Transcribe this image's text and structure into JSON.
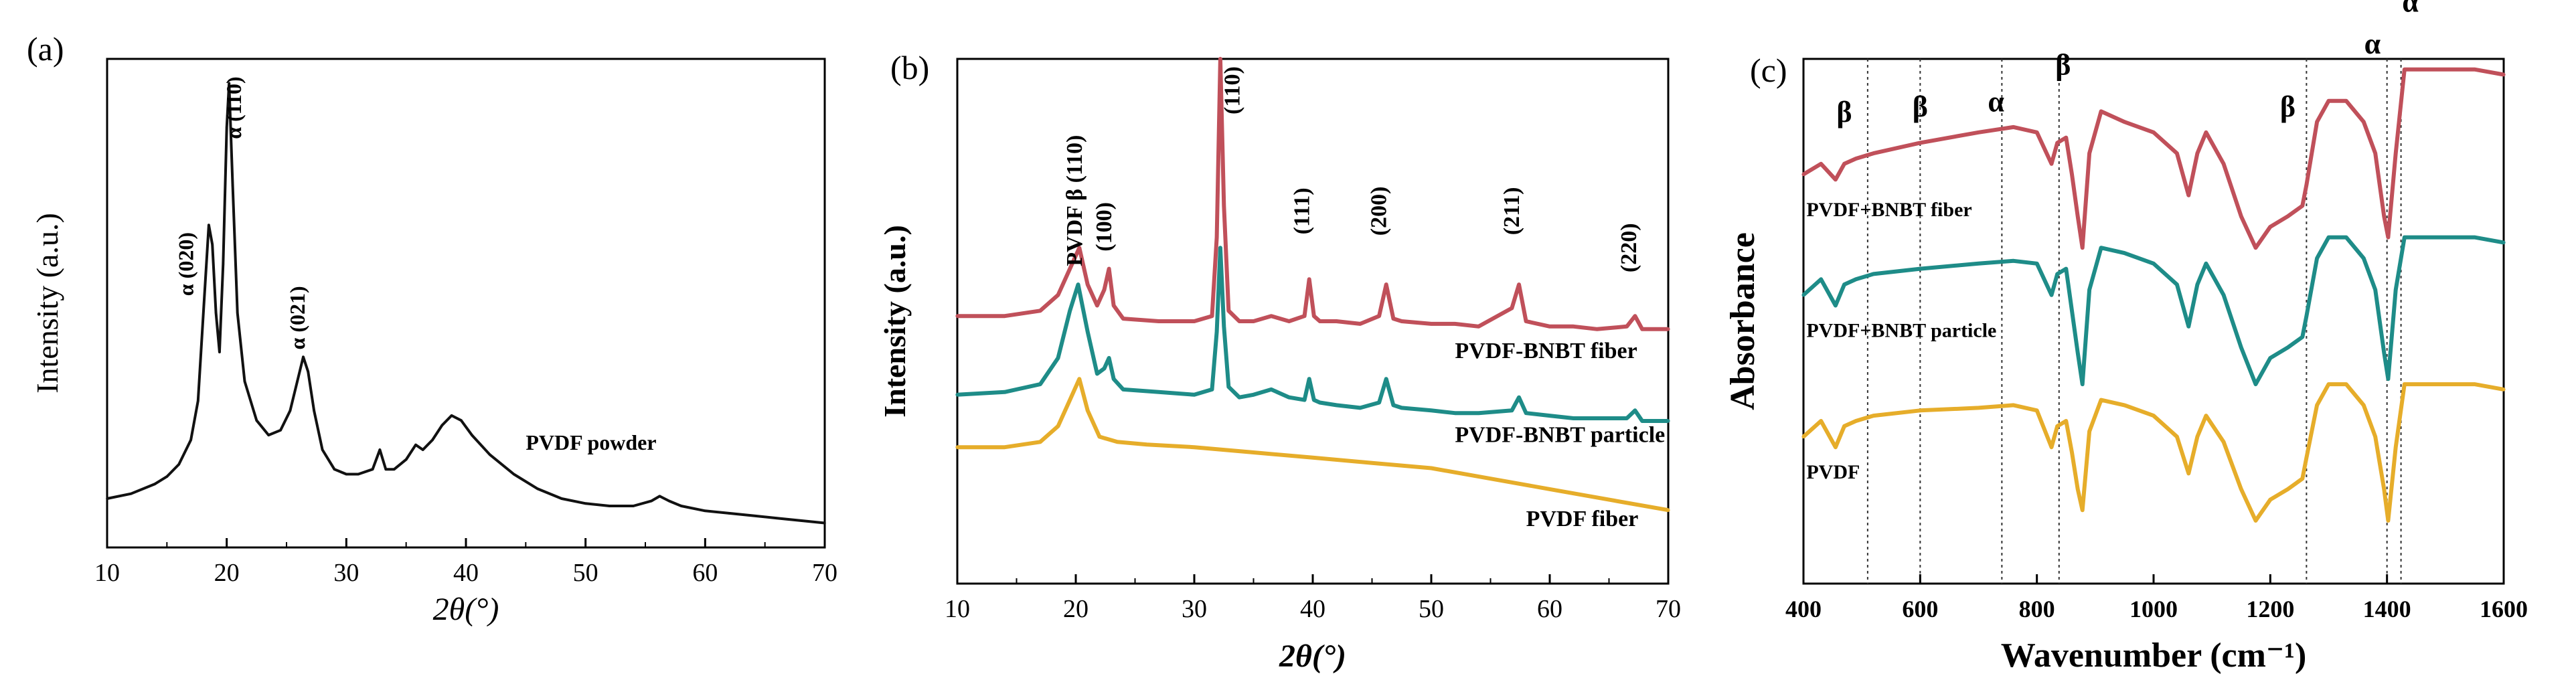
{
  "chart_data": [
    {
      "type": "line",
      "panel_label": "(a)",
      "xlabel": "2θ(°)",
      "ylabel": "Intensity (a.u.)",
      "xlim": [
        10,
        70
      ],
      "ylim": [
        0,
        100
      ],
      "xticks": [
        10,
        20,
        30,
        40,
        50,
        60,
        70
      ],
      "series": [
        {
          "name": "PVDF powder",
          "color": "#111111",
          "x": [
            10,
            12,
            14,
            15,
            16,
            17,
            17.6,
            18.1,
            18.5,
            18.8,
            19.1,
            19.4,
            19.7,
            20.0,
            20.2,
            20.5,
            20.9,
            21.5,
            22.5,
            23.5,
            24.5,
            25.3,
            25.9,
            26.4,
            26.8,
            27.3,
            28,
            29,
            30,
            31,
            32.2,
            32.8,
            33.3,
            34,
            35,
            35.8,
            36.4,
            37.2,
            38,
            38.8,
            39.6,
            40.5,
            42,
            44,
            46,
            48,
            50,
            52,
            54,
            55.5,
            56.2,
            57,
            58,
            60,
            62,
            64,
            66,
            68,
            70
          ],
          "values": [
            10,
            11,
            13,
            14.5,
            17,
            22,
            30,
            50,
            66,
            62,
            48,
            40,
            58,
            86,
            95,
            74,
            48,
            34,
            26,
            23,
            24,
            28,
            34,
            39,
            36,
            28,
            20,
            16,
            15,
            15,
            16,
            20,
            16,
            16,
            18,
            21,
            20,
            22,
            25,
            27,
            26,
            23,
            19,
            15,
            12,
            10,
            9,
            8.5,
            8.5,
            9.5,
            10.5,
            9.5,
            8.5,
            7.5,
            7,
            6.5,
            6,
            5.5,
            5
          ]
        }
      ],
      "annotations": [
        {
          "text": "α (020)",
          "x": 17.2,
          "y": 58
        },
        {
          "text": "α (110)",
          "x": 21.2,
          "y": 90
        },
        {
          "text": "α (021)",
          "x": 26.5,
          "y": 47
        },
        {
          "text": "PVDF powder",
          "x": 45,
          "y": 20
        }
      ]
    },
    {
      "type": "line",
      "panel_label": "(b)",
      "xlabel": "2θ(°)",
      "ylabel": "Intensity (a.u.)",
      "xlim": [
        10,
        70
      ],
      "ylim": [
        0,
        100
      ],
      "xticks": [
        10,
        20,
        30,
        40,
        50,
        60,
        70
      ],
      "series": [
        {
          "name": "PVDF-BNBT fiber",
          "color": "#c0505a",
          "x": [
            10,
            14,
            17,
            18.5,
            19.5,
            20.3,
            21,
            21.8,
            22.4,
            22.8,
            23.2,
            24,
            27,
            30,
            31.5,
            31.9,
            32.2,
            32.5,
            32.9,
            33.8,
            35,
            36.5,
            38,
            39.3,
            39.7,
            40.1,
            40.6,
            42,
            44,
            45.6,
            46.2,
            46.8,
            47.5,
            50,
            52,
            54,
            56.8,
            57.4,
            58,
            60,
            62,
            64,
            66.5,
            67.2,
            67.8,
            69,
            70
          ],
          "values": [
            51,
            51,
            52,
            55,
            60,
            64,
            57,
            53,
            56,
            60,
            53,
            50.5,
            50,
            50,
            51,
            66,
            100,
            72,
            52,
            50,
            50,
            51,
            50,
            51,
            58,
            51,
            50,
            50,
            49.5,
            51,
            57,
            50.5,
            50,
            49.5,
            49.5,
            49,
            52.5,
            57,
            50,
            49,
            49,
            48.5,
            49,
            51,
            48.5,
            48.5,
            48.5
          ]
        },
        {
          "name": "PVDF-BNBT particle",
          "color": "#1e8c88",
          "x": [
            10,
            14,
            17,
            18.5,
            19.5,
            20.2,
            21,
            21.8,
            22.4,
            22.8,
            23.2,
            24,
            27,
            30,
            31.5,
            31.9,
            32.2,
            32.5,
            32.9,
            33.8,
            35,
            36.5,
            38,
            39.3,
            39.7,
            40.1,
            40.6,
            42,
            44,
            45.6,
            46.2,
            46.8,
            47.5,
            50,
            52,
            54,
            56.8,
            57.4,
            58,
            60,
            62,
            64,
            66.5,
            67.2,
            67.8,
            69,
            70
          ],
          "values": [
            36,
            36.5,
            38,
            43,
            52,
            57,
            48,
            40,
            41,
            43,
            39,
            37,
            36.5,
            36,
            37,
            48,
            64,
            49,
            37.5,
            35.5,
            36,
            37,
            35.5,
            35,
            39,
            35,
            34.5,
            34,
            33.5,
            34.5,
            39,
            34,
            33.5,
            33,
            32.5,
            32.5,
            33,
            35.5,
            32.5,
            32,
            31.5,
            31.5,
            31.5,
            33,
            31,
            31,
            31
          ]
        },
        {
          "name": "PVDF fiber",
          "color": "#e6ad2a",
          "x": [
            10,
            14,
            17,
            18.5,
            19.5,
            20.3,
            21,
            22,
            23.5,
            26,
            30,
            35,
            40,
            45,
            50,
            55,
            60,
            65,
            70
          ],
          "values": [
            26,
            26,
            27,
            30,
            35,
            39,
            33,
            28,
            27,
            26.5,
            26,
            25,
            24,
            23,
            22,
            20,
            18,
            16,
            14
          ]
        }
      ],
      "annotations": [
        {
          "text": "PVDF β (110)",
          "x": 20.5,
          "y": 73
        },
        {
          "text": "(100)",
          "x": 23,
          "y": 68
        },
        {
          "text": "(110)",
          "x": 33.8,
          "y": 94
        },
        {
          "text": "(111)",
          "x": 39.7,
          "y": 71
        },
        {
          "text": "(200)",
          "x": 46.2,
          "y": 71
        },
        {
          "text": "(211)",
          "x": 57.4,
          "y": 71
        },
        {
          "text": "(220)",
          "x": 67.3,
          "y": 64
        },
        {
          "text": "PVDF-BNBT fiber",
          "x": 52,
          "y": 43
        },
        {
          "text": "PVDF-BNBT particle",
          "x": 52,
          "y": 27
        },
        {
          "text": "PVDF fiber",
          "x": 58,
          "y": 11
        }
      ]
    },
    {
      "type": "line",
      "panel_label": "(c)",
      "xlabel": "Wavenumber (cm⁻¹)",
      "ylabel": "Absorbance",
      "xlim": [
        400,
        1600
      ],
      "ylim": [
        0,
        100
      ],
      "xticks": [
        400,
        600,
        800,
        1000,
        1200,
        1400,
        1600
      ],
      "reference_lines_x": [
        510,
        600,
        740,
        838,
        1262,
        1400,
        1424
      ],
      "series": [
        {
          "name": "PVDF+BNBT fiber",
          "color": "#c0505a",
          "x": [
            400,
            430,
            455,
            470,
            490,
            520,
            600,
            700,
            760,
            800,
            825,
            835,
            850,
            860,
            870,
            878,
            890,
            910,
            950,
            1000,
            1040,
            1060,
            1075,
            1090,
            1120,
            1150,
            1175,
            1200,
            1230,
            1255,
            1262,
            1280,
            1300,
            1330,
            1360,
            1380,
            1395,
            1402,
            1415,
            1430,
            1450,
            1500,
            1550,
            1600
          ],
          "values": [
            78,
            80,
            77,
            80,
            81,
            82,
            84,
            86,
            87,
            86,
            80,
            84,
            85,
            78,
            70,
            64,
            82,
            90,
            88,
            86,
            82,
            74,
            82,
            86,
            80,
            70,
            64,
            68,
            70,
            72,
            76,
            88,
            92,
            92,
            88,
            82,
            70,
            66,
            82,
            98,
            98,
            98,
            98,
            97
          ]
        },
        {
          "name": "PVDF+BNBT particle",
          "color": "#1e8c88",
          "x": [
            400,
            430,
            455,
            470,
            490,
            520,
            600,
            700,
            760,
            800,
            825,
            835,
            850,
            860,
            870,
            878,
            890,
            910,
            950,
            1000,
            1040,
            1060,
            1075,
            1090,
            1120,
            1150,
            1175,
            1200,
            1230,
            1255,
            1262,
            1280,
            1300,
            1330,
            1360,
            1380,
            1395,
            1402,
            1415,
            1430,
            1450,
            1500,
            1550,
            1600
          ],
          "values": [
            55,
            58,
            53,
            57,
            58,
            59,
            60,
            61,
            61.5,
            61,
            55,
            59,
            60,
            52,
            44,
            38,
            56,
            64,
            63,
            61,
            57,
            49,
            57,
            61,
            55,
            45,
            38,
            43,
            45,
            47,
            51,
            62,
            66,
            66,
            62,
            56,
            44,
            39,
            56,
            66,
            66,
            66,
            66,
            65
          ]
        },
        {
          "name": "PVDF",
          "color": "#e6ad2a",
          "x": [
            400,
            430,
            455,
            470,
            490,
            520,
            600,
            700,
            760,
            800,
            825,
            835,
            850,
            860,
            870,
            878,
            890,
            910,
            950,
            1000,
            1040,
            1060,
            1075,
            1090,
            1120,
            1150,
            1175,
            1200,
            1230,
            1255,
            1262,
            1280,
            1300,
            1330,
            1360,
            1380,
            1395,
            1402,
            1415,
            1430,
            1450,
            1500,
            1550,
            1600
          ],
          "values": [
            28,
            31,
            26,
            30,
            31,
            32,
            33,
            33.5,
            34,
            33,
            26,
            30,
            31,
            25,
            18,
            14,
            29,
            35,
            34,
            32,
            28,
            21,
            28,
            32,
            27,
            18,
            12,
            16,
            18,
            20,
            24,
            34,
            38,
            38,
            34,
            28,
            18,
            12,
            26,
            38,
            38,
            38,
            38,
            37
          ]
        }
      ],
      "annotations": [
        {
          "text": "β",
          "x": 470,
          "y": 88
        },
        {
          "text": "β",
          "x": 600,
          "y": 89
        },
        {
          "text": "α",
          "x": 730,
          "y": 90
        },
        {
          "text": "β",
          "x": 845,
          "y": 97
        },
        {
          "text": "β",
          "x": 1230,
          "y": 89
        },
        {
          "text": "α",
          "x": 1375,
          "y": 101
        },
        {
          "text": "α",
          "x": 1440,
          "y": 109
        },
        {
          "text": "PVDF+BNBT fiber",
          "x": 405,
          "y": 70
        },
        {
          "text": "PVDF+BNBT particle",
          "x": 405,
          "y": 47
        },
        {
          "text": "PVDF",
          "x": 405,
          "y": 20
        }
      ]
    }
  ]
}
